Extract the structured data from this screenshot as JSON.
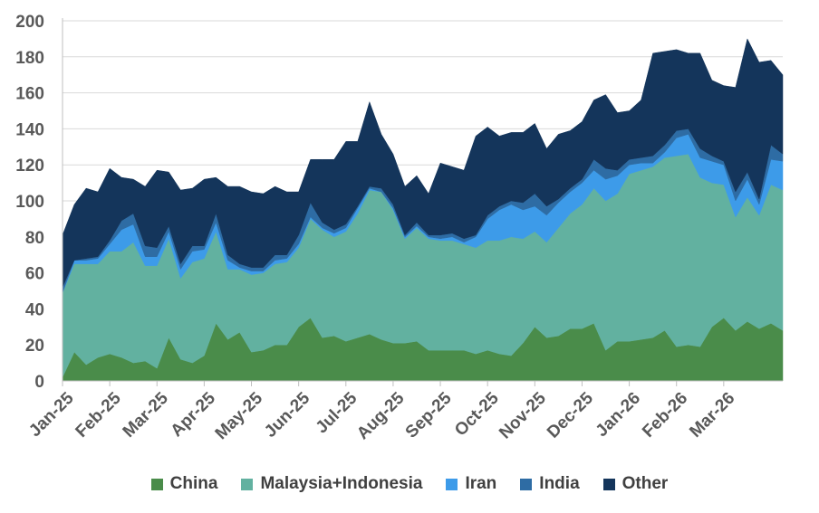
{
  "chart_data": {
    "type": "area",
    "stacked": true,
    "title": "",
    "xlabel": "",
    "ylabel": "",
    "ylim": [
      0,
      200
    ],
    "yticks": [
      0,
      20,
      40,
      60,
      80,
      100,
      120,
      140,
      160,
      180,
      200
    ],
    "x_tick_labels": [
      "Jan-25",
      "Feb-25",
      "Mar-25",
      "Apr-25",
      "May-25",
      "Jun-25",
      "Jul-25",
      "Aug-25",
      "Sep-25",
      "Oct-25",
      "Nov-25",
      "Dec-25",
      "Jan-26",
      "Feb-26",
      "Mar-26"
    ],
    "points_per_month": 4,
    "legend_position": "bottom",
    "series": [
      {
        "name": "China",
        "color": "#4a8c4a",
        "values": [
          2,
          16,
          9,
          13,
          15,
          13,
          10,
          11,
          7,
          24,
          12,
          10,
          14,
          32,
          23,
          27,
          16,
          17,
          20,
          20,
          30,
          35,
          24,
          25,
          22,
          24,
          26,
          23,
          21,
          21,
          22,
          17,
          17,
          17,
          17,
          15,
          17,
          15,
          14,
          21,
          30,
          24,
          25,
          29,
          29,
          32,
          17,
          22,
          22,
          23,
          24,
          28,
          19,
          20,
          19,
          30,
          35,
          28,
          33,
          29,
          32,
          28
        ]
      },
      {
        "name": "Malaysia+Indonesia",
        "color": "#62b1a0",
        "values": [
          47,
          49,
          56,
          52,
          57,
          59,
          67,
          53,
          57,
          55,
          45,
          56,
          54,
          51,
          39,
          35,
          43,
          43,
          45,
          46,
          44,
          55,
          60,
          55,
          61,
          69,
          80,
          82,
          74,
          58,
          63,
          62,
          61,
          61,
          59,
          59,
          61,
          63,
          66,
          58,
          53,
          53,
          60,
          64,
          69,
          75,
          83,
          82,
          93,
          94,
          95,
          96,
          106,
          106,
          94,
          80,
          74,
          63,
          69,
          63,
          77,
          78
        ]
      },
      {
        "name": "Iran",
        "color": "#3d9be9",
        "values": [
          0,
          2,
          2,
          3,
          4,
          12,
          10,
          5,
          5,
          4,
          5,
          6,
          5,
          5,
          5,
          1,
          2,
          1,
          2,
          2,
          2,
          1,
          1,
          2,
          2,
          3,
          1,
          0,
          1,
          1,
          1,
          1,
          1,
          2,
          1,
          6,
          12,
          17,
          18,
          16,
          14,
          15,
          14,
          12,
          12,
          10,
          12,
          10,
          5,
          4,
          2,
          3,
          10,
          11,
          11,
          12,
          11,
          9,
          10,
          6,
          14,
          16
        ]
      },
      {
        "name": "India",
        "color": "#2e6ca4",
        "values": [
          3,
          0,
          1,
          1,
          2,
          5,
          6,
          6,
          5,
          3,
          3,
          3,
          2,
          5,
          3,
          2,
          2,
          2,
          3,
          2,
          5,
          8,
          3,
          2,
          2,
          1,
          1,
          2,
          2,
          1,
          2,
          1,
          2,
          2,
          2,
          1,
          2,
          2,
          2,
          4,
          7,
          5,
          2,
          2,
          2,
          6,
          6,
          3,
          3,
          3,
          4,
          4,
          4,
          3,
          5,
          3,
          2,
          5,
          4,
          3,
          8,
          4
        ]
      },
      {
        "name": "Other",
        "color": "#14355b",
        "values": [
          29,
          31,
          39,
          36,
          40,
          24,
          19,
          33,
          43,
          30,
          41,
          32,
          37,
          20,
          38,
          43,
          42,
          41,
          38,
          35,
          24,
          24,
          35,
          39,
          46,
          36,
          47,
          30,
          28,
          27,
          26,
          23,
          40,
          37,
          38,
          55,
          49,
          39,
          38,
          39,
          39,
          32,
          36,
          32,
          32,
          33,
          41,
          32,
          27,
          32,
          57,
          52,
          45,
          42,
          53,
          42,
          42,
          58,
          74,
          76,
          47,
          44
        ]
      }
    ]
  }
}
